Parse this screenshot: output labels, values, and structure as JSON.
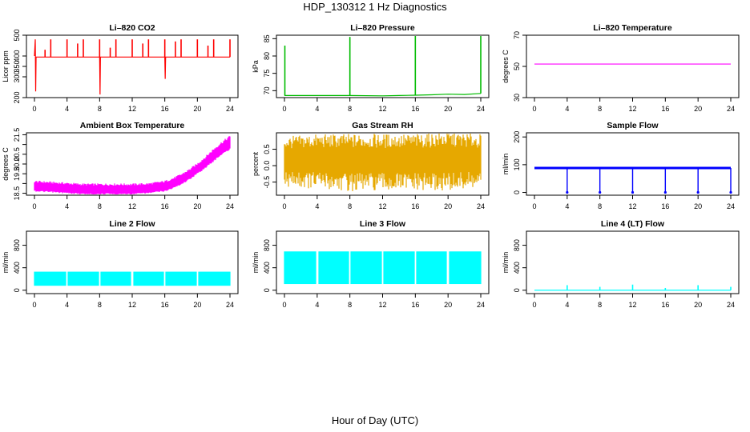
{
  "title": "HDP_130312  1 Hz Diagnostics",
  "xlabel": "Hour of Day (UTC)",
  "chart_data": [
    {
      "type": "line",
      "title": "Li–820 CO2",
      "ylabel": "Licor ppm",
      "color": "#ff0000",
      "ylim": [
        200,
        500
      ],
      "yticks": [
        200,
        300,
        350,
        400,
        500
      ],
      "yticklabels": [
        "200",
        "300",
        "350",
        "400",
        "500"
      ],
      "xlim": [
        0,
        24
      ],
      "xticks": [
        0,
        4,
        8,
        12,
        16,
        20,
        24
      ],
      "series": [
        {
          "x": [
            0,
            0.1,
            0.15,
            0.2,
            1,
            2,
            4,
            8,
            8.05,
            8.1,
            12,
            16,
            16.05,
            16.1,
            20,
            24
          ],
          "values": [
            400,
            480,
            230,
            395,
            395,
            395,
            395,
            395,
            215,
            395,
            395,
            395,
            290,
            395,
            395,
            395
          ]
        }
      ],
      "spikes": {
        "x": [
          1.3,
          2.0,
          4.0,
          5.3,
          6.0,
          8.0,
          9.3,
          10.0,
          12.0,
          13.3,
          14.0,
          16.0,
          17.3,
          18.0,
          20.0,
          21.3,
          22.0,
          24.0
        ],
        "values": [
          430,
          480,
          480,
          460,
          480,
          480,
          440,
          480,
          480,
          460,
          480,
          480,
          470,
          480,
          480,
          450,
          480,
          480
        ]
      }
    },
    {
      "type": "line",
      "title": "Li–820 Pressure",
      "ylabel": "kPa",
      "color": "#00bb00",
      "ylim": [
        68,
        86
      ],
      "yticks": [
        70,
        75,
        80,
        85
      ],
      "yticklabels": [
        "70",
        "75",
        "80",
        "85"
      ],
      "xlim": [
        0,
        24
      ],
      "xticks": [
        0,
        4,
        8,
        12,
        16,
        20,
        24
      ],
      "series": [
        {
          "x": [
            0,
            4,
            8,
            12,
            14,
            16,
            18,
            20,
            22,
            24
          ],
          "values": [
            68.6,
            68.6,
            68.6,
            68.5,
            68.6,
            68.7,
            68.8,
            69.0,
            68.9,
            69.2
          ]
        }
      ],
      "spikes": {
        "x": [
          0.05,
          8.0,
          16.0,
          24.0
        ],
        "values": [
          83,
          85.5,
          86,
          86
        ]
      }
    },
    {
      "type": "line",
      "title": "Li–820 Temperature",
      "ylabel": "degrees C",
      "color": "#ff00ff",
      "ylim": [
        30,
        70
      ],
      "yticks": [
        30,
        50,
        70
      ],
      "yticklabels": [
        "30",
        "50",
        "70"
      ],
      "xlim": [
        0,
        24
      ],
      "xticks": [
        0,
        4,
        8,
        12,
        16,
        20,
        24
      ],
      "series": [
        {
          "x": [
            0,
            24
          ],
          "values": [
            51.5,
            51.5
          ]
        }
      ]
    },
    {
      "type": "area",
      "title": "Ambient Box Temperature",
      "ylabel": "degrees C",
      "color": "#ff00ff",
      "ylim": [
        18.4,
        21.6
      ],
      "yticks": [
        18.5,
        19.0,
        19.5,
        20.0,
        20.5,
        21.0,
        21.5
      ],
      "yticklabels": [
        "18.5",
        "",
        "19.5",
        "20.0",
        "20.5",
        "",
        "21.5"
      ],
      "xlim": [
        0,
        24
      ],
      "xticks": [
        0,
        4,
        8,
        12,
        16,
        20,
        24
      ],
      "series": [
        {
          "name": "upper",
          "x": [
            0,
            2,
            4,
            6,
            8,
            10,
            12,
            14,
            16,
            17,
            18,
            19,
            20,
            21,
            22,
            23,
            24
          ],
          "values": [
            19.1,
            19.05,
            19.0,
            18.95,
            18.95,
            18.95,
            18.95,
            18.98,
            19.1,
            19.25,
            19.45,
            19.7,
            20.0,
            20.35,
            20.75,
            21.1,
            21.4
          ]
        },
        {
          "name": "lower",
          "x": [
            0,
            2,
            4,
            6,
            8,
            10,
            12,
            14,
            16,
            17,
            18,
            19,
            20,
            21,
            22,
            23,
            24
          ],
          "values": [
            18.65,
            18.6,
            18.55,
            18.5,
            18.5,
            18.5,
            18.5,
            18.55,
            18.65,
            18.8,
            19.0,
            19.25,
            19.55,
            19.85,
            20.2,
            20.55,
            20.8
          ]
        }
      ]
    },
    {
      "type": "area",
      "title": "Gas Stream RH",
      "ylabel": "percent",
      "color": "#e6a800",
      "ylim": [
        -0.9,
        1.0
      ],
      "yticks": [
        -0.5,
        0.0,
        0.5
      ],
      "yticklabels": [
        "-0.5",
        "0.0",
        "0.5"
      ],
      "xlim": [
        0,
        24
      ],
      "xticks": [
        0,
        4,
        8,
        12,
        16,
        20,
        24
      ],
      "series": [
        {
          "name": "upper",
          "x": [
            0,
            4,
            8,
            12,
            16,
            20,
            24
          ],
          "values": [
            0.7,
            0.75,
            0.75,
            0.75,
            0.75,
            0.8,
            0.75
          ]
        },
        {
          "name": "lower",
          "x": [
            0,
            4,
            8,
            12,
            16,
            20,
            24
          ],
          "values": [
            -0.4,
            -0.45,
            -0.5,
            -0.5,
            -0.5,
            -0.5,
            -0.45
          ]
        }
      ]
    },
    {
      "type": "line",
      "title": "Sample Flow",
      "ylabel": "ml/min",
      "color": "#0000ff",
      "ylim": [
        -10,
        215
      ],
      "yticks": [
        0,
        100,
        200
      ],
      "yticklabels": [
        "0",
        "100",
        "200"
      ],
      "xlim": [
        0,
        24
      ],
      "xticks": [
        0,
        4,
        8,
        12,
        16,
        20,
        24
      ],
      "series": [
        {
          "x": [
            0,
            24
          ],
          "values": [
            88,
            88
          ]
        }
      ],
      "dips": {
        "x": [
          4.0,
          8.0,
          12.0,
          16.0,
          20.0,
          24.0
        ],
        "values": [
          0,
          0,
          0,
          0,
          0,
          0
        ]
      }
    },
    {
      "type": "area",
      "title": "Line 2 Flow",
      "ylabel": "ml/min",
      "color": "#00ffff",
      "ylim": [
        -60,
        1050
      ],
      "yticks": [
        0,
        400,
        800
      ],
      "yticklabels": [
        "0",
        "400",
        "800"
      ],
      "xlim": [
        0,
        24
      ],
      "xticks": [
        0,
        4,
        8,
        12,
        16,
        20,
        24
      ],
      "series": [
        {
          "name": "upper",
          "x": [
            0,
            24
          ],
          "values": [
            330,
            330
          ]
        },
        {
          "name": "lower",
          "x": [
            0,
            24
          ],
          "values": [
            80,
            80
          ]
        }
      ],
      "gaps": [
        4.0,
        8.0,
        12.0,
        16.0,
        20.0
      ]
    },
    {
      "type": "area",
      "title": "Line 3 Flow",
      "ylabel": "ml/min",
      "color": "#00ffff",
      "ylim": [
        -60,
        1050
      ],
      "yticks": [
        0,
        400,
        800
      ],
      "yticklabels": [
        "0",
        "400",
        "800"
      ],
      "xlim": [
        0,
        24
      ],
      "xticks": [
        0,
        4,
        8,
        12,
        16,
        20,
        24
      ],
      "series": [
        {
          "name": "upper",
          "x": [
            0,
            24
          ],
          "values": [
            690,
            690
          ]
        },
        {
          "name": "lower",
          "x": [
            0,
            24
          ],
          "values": [
            110,
            110
          ]
        }
      ],
      "gaps": [
        4.0,
        8.0,
        12.0,
        16.0,
        20.0
      ]
    },
    {
      "type": "line",
      "title": "Line 4 (LT) Flow",
      "ylabel": "ml/min",
      "color": "#00ffff",
      "ylim": [
        -60,
        1050
      ],
      "yticks": [
        0,
        400,
        800
      ],
      "yticklabels": [
        "0",
        "400",
        "800"
      ],
      "xlim": [
        0,
        24
      ],
      "xticks": [
        0,
        4,
        8,
        12,
        16,
        20,
        24
      ],
      "series": [
        {
          "x": [
            0,
            24
          ],
          "values": [
            0,
            0
          ]
        }
      ],
      "spikes": {
        "x": [
          4.0,
          8.0,
          12.0,
          16.0,
          20.0,
          24.0
        ],
        "values": [
          90,
          60,
          100,
          40,
          90,
          60
        ]
      }
    }
  ]
}
